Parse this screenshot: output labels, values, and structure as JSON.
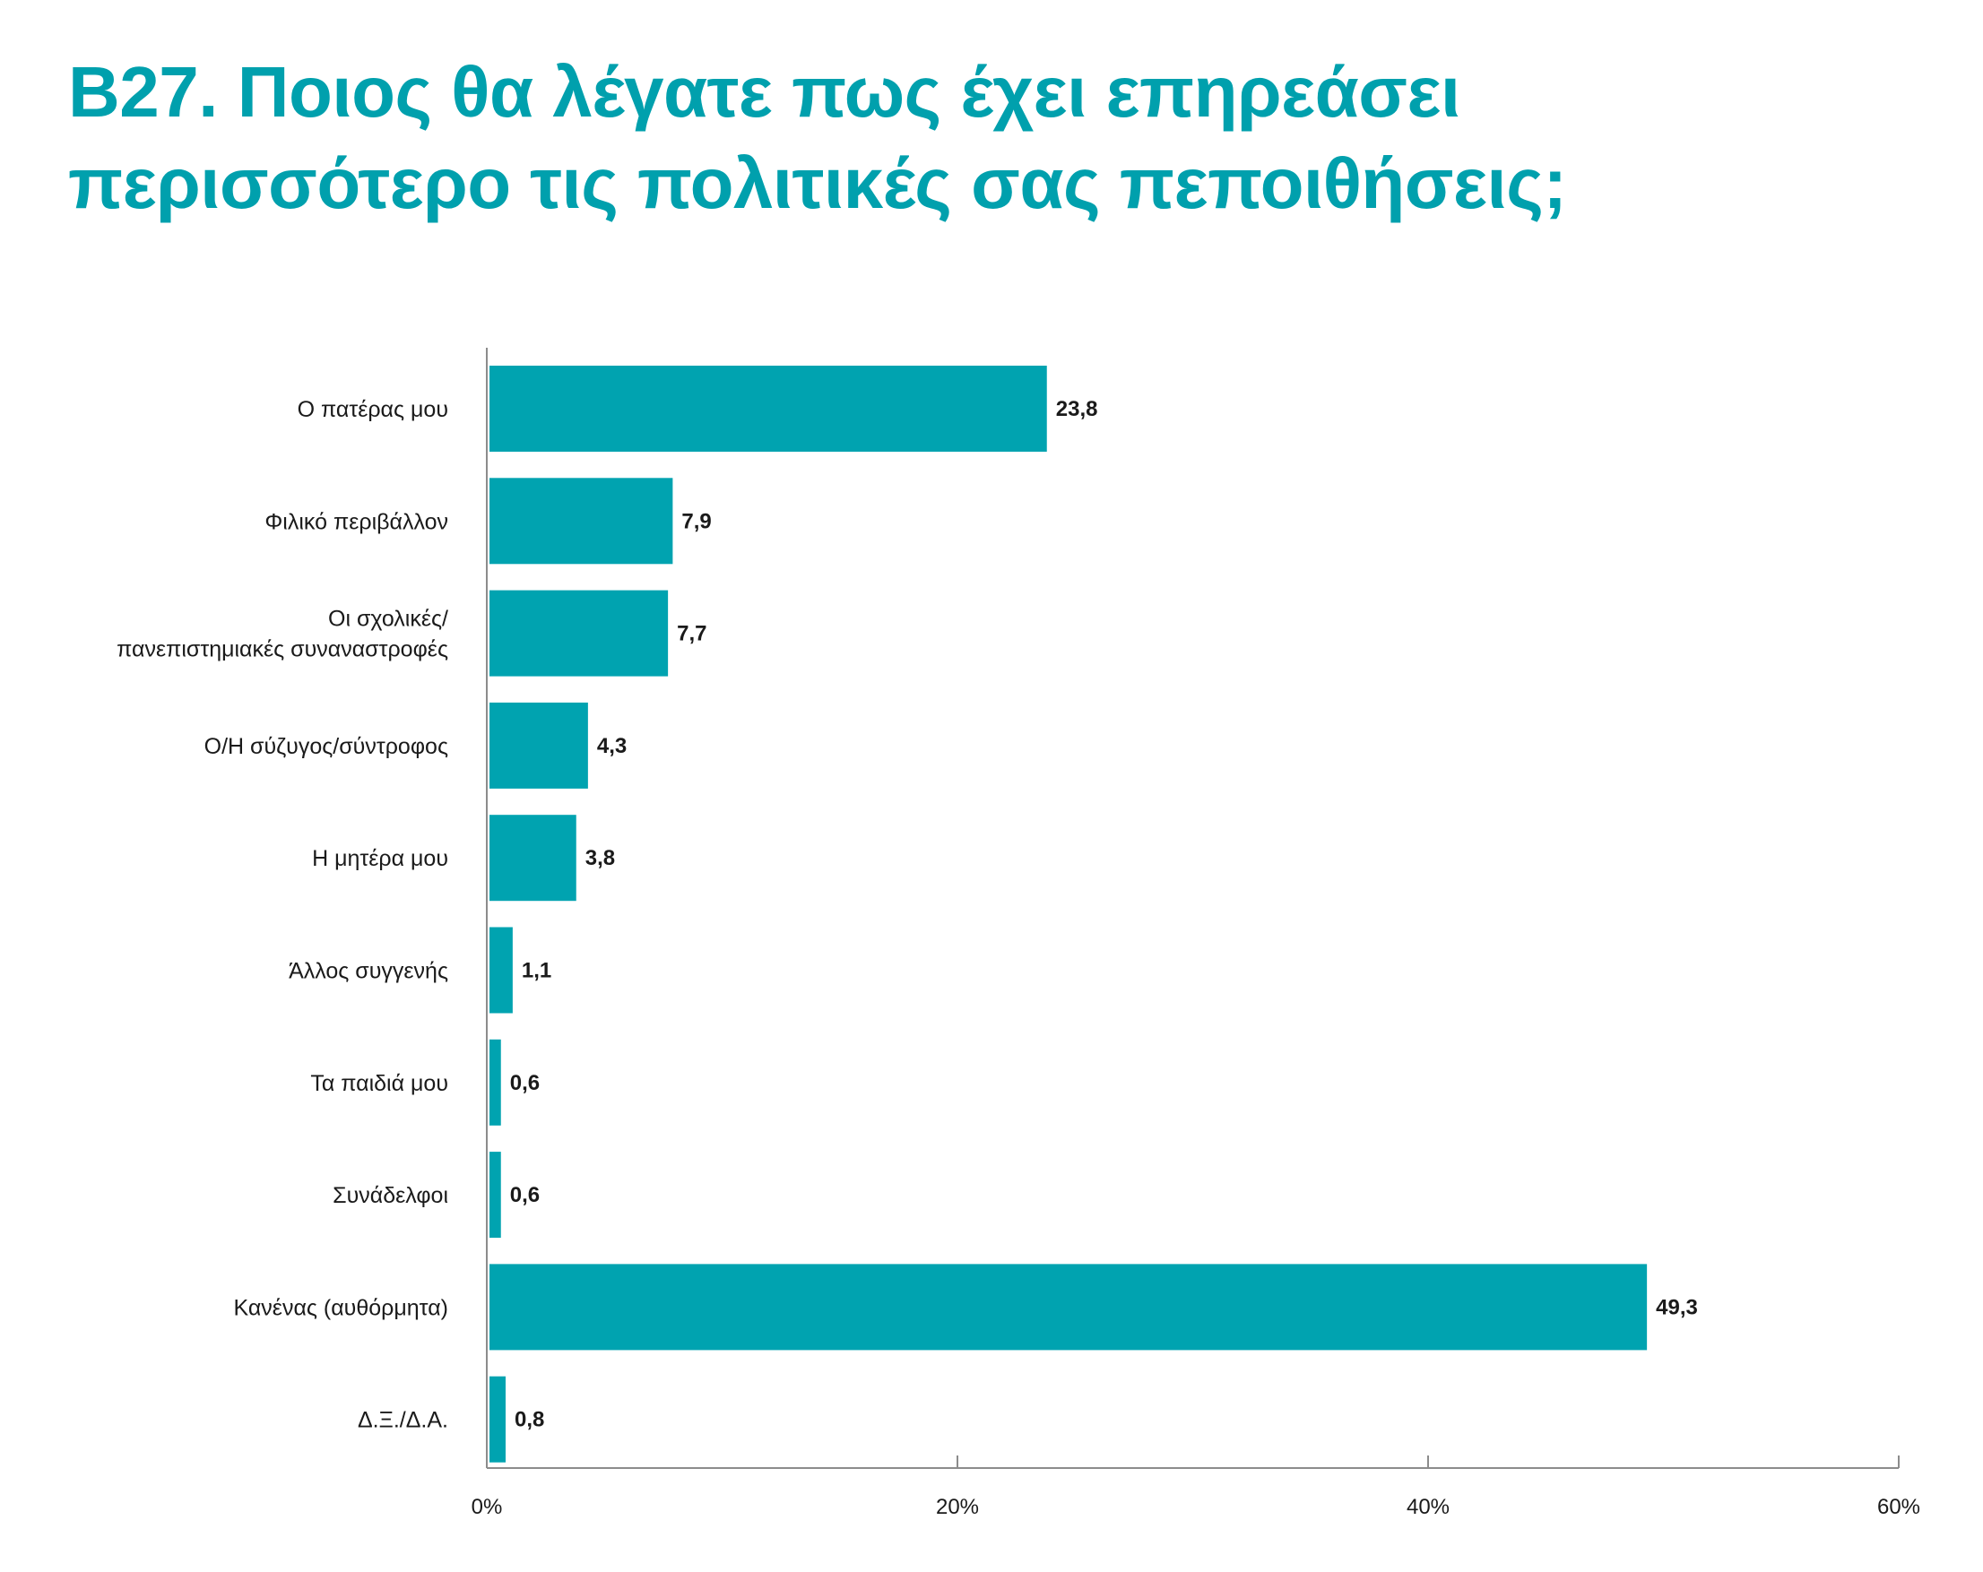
{
  "title_lines": [
    "B27. Ποιος θα λέγατε πως έχει επηρεάσει",
    "περισσότερο τις πολιτικές σας πεποιθήσεις;"
  ],
  "chart_data": {
    "type": "bar",
    "orientation": "horizontal",
    "title": "B27. Ποιος θα λέγατε πως έχει επηρεάσει περισσότερο τις πολιτικές σας πεποιθήσεις;",
    "categories": [
      [
        "Ο πατέρας μου"
      ],
      [
        "Φιλικό περιβάλλον"
      ],
      [
        "Οι σχολικές/",
        "πανεπιστημιακές συναναστροφές"
      ],
      [
        "Ο/Η σύζυγος/σύντροφος"
      ],
      [
        "Η μητέρα μου"
      ],
      [
        "Άλλος συγγενής"
      ],
      [
        "Τα παιδιά μου"
      ],
      [
        "Συνάδελφοι"
      ],
      [
        "Κανένας (αυθόρμητα)"
      ],
      [
        "Δ.Ξ./Δ.Α."
      ]
    ],
    "values": [
      23.8,
      7.9,
      7.7,
      4.3,
      3.8,
      1.1,
      0.6,
      0.6,
      49.3,
      0.8
    ],
    "value_labels": [
      "23,8",
      "7,9",
      "7,7",
      "4,3",
      "3,8",
      "1,1",
      "0,6",
      "0,6",
      "49,3",
      "0,8"
    ],
    "xlim": [
      0,
      60
    ],
    "xticks": [
      0,
      20,
      40,
      60
    ],
    "xtick_labels": [
      "0%",
      "20%",
      "40%",
      "60%"
    ],
    "grid": false,
    "colors": {
      "bar": "#00a3b0",
      "axis": "#8c8c8c",
      "title": "#00a0ad"
    }
  }
}
